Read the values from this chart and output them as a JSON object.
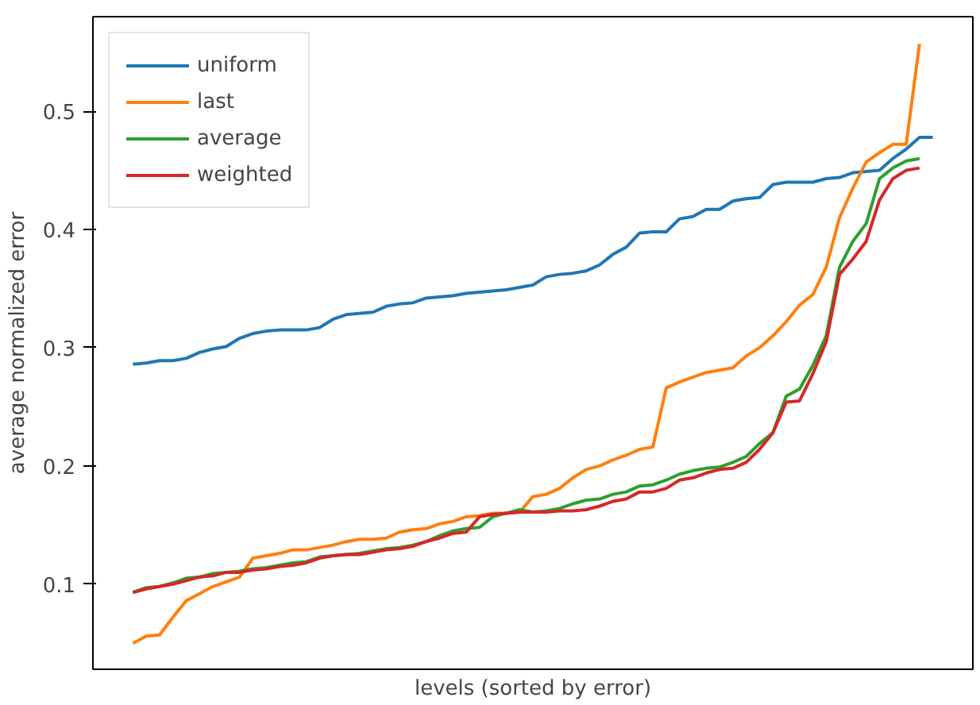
{
  "chart_data": {
    "type": "line",
    "xlabel": "levels (sorted by error)",
    "ylabel": "average normalized error",
    "categories": [
      null,
      null,
      null,
      null,
      null,
      null,
      null,
      null,
      null,
      null,
      null,
      null,
      null,
      null,
      null,
      null,
      null,
      null,
      null,
      null,
      null,
      null,
      null,
      null,
      null,
      null,
      null,
      null,
      null,
      null,
      null,
      null,
      null,
      null,
      null,
      null,
      null,
      null,
      null,
      null,
      null,
      null,
      null,
      null,
      null,
      null,
      null,
      null,
      null,
      null,
      null,
      null,
      null,
      null,
      null,
      null,
      null,
      null,
      null,
      null,
      null
    ],
    "series": [
      {
        "name": "uniform",
        "color": "#1f77b4",
        "values": [
          0.286,
          0.287,
          0.289,
          0.289,
          0.291,
          0.296,
          0.299,
          0.301,
          0.308,
          0.312,
          0.314,
          0.315,
          0.315,
          0.315,
          0.317,
          0.324,
          0.328,
          0.329,
          0.33,
          0.335,
          0.337,
          0.338,
          0.342,
          0.343,
          0.344,
          0.346,
          0.347,
          0.348,
          0.349,
          0.351,
          0.353,
          0.36,
          0.362,
          0.363,
          0.365,
          0.37,
          0.379,
          0.385,
          0.397,
          0.398,
          0.398,
          0.409,
          0.411,
          0.417,
          0.417,
          0.424,
          0.426,
          0.427,
          0.438,
          0.44,
          0.44,
          0.44,
          0.443,
          0.444,
          0.448,
          0.449,
          0.45,
          0.46,
          0.468,
          0.478,
          0.478
        ]
      },
      {
        "name": "last",
        "color": "#ff7f0e",
        "values": [
          0.05,
          0.056,
          0.057,
          0.072,
          0.086,
          0.092,
          0.098,
          0.102,
          0.106,
          0.122,
          0.124,
          0.126,
          0.129,
          0.129,
          0.131,
          0.133,
          0.136,
          0.138,
          0.138,
          0.139,
          0.144,
          0.146,
          0.147,
          0.151,
          0.153,
          0.157,
          0.158,
          0.16,
          0.16,
          0.161,
          0.174,
          0.176,
          0.181,
          0.19,
          0.197,
          0.2,
          0.205,
          0.209,
          0.214,
          0.216,
          0.266,
          0.271,
          0.275,
          0.279,
          0.281,
          0.283,
          0.293,
          0.3,
          0.31,
          0.322,
          0.336,
          0.345,
          0.368,
          0.41,
          0.435,
          0.457,
          0.465,
          0.472,
          0.472,
          0.557,
          null
        ]
      },
      {
        "name": "average",
        "color": "#2ca02c",
        "values": [
          0.093,
          0.097,
          0.098,
          0.101,
          0.105,
          0.106,
          0.109,
          0.11,
          0.111,
          0.113,
          0.114,
          0.116,
          0.118,
          0.119,
          0.123,
          0.124,
          0.125,
          0.126,
          0.128,
          0.13,
          0.131,
          0.133,
          0.136,
          0.141,
          0.145,
          0.147,
          0.148,
          0.157,
          0.16,
          0.163,
          0.161,
          0.162,
          0.164,
          0.168,
          0.171,
          0.172,
          0.176,
          0.178,
          0.183,
          0.184,
          0.188,
          0.193,
          0.196,
          0.198,
          0.199,
          0.203,
          0.208,
          0.219,
          0.228,
          0.259,
          0.265,
          0.285,
          0.31,
          0.368,
          0.39,
          0.405,
          0.443,
          0.452,
          0.458,
          0.46,
          null
        ]
      },
      {
        "name": "weighted",
        "color": "#d62728",
        "values": [
          0.093,
          0.096,
          0.098,
          0.1,
          0.103,
          0.106,
          0.107,
          0.11,
          0.11,
          0.112,
          0.113,
          0.115,
          0.116,
          0.118,
          0.122,
          0.124,
          0.125,
          0.125,
          0.127,
          0.129,
          0.13,
          0.132,
          0.136,
          0.139,
          0.143,
          0.144,
          0.157,
          0.159,
          0.16,
          0.161,
          0.161,
          0.161,
          0.162,
          0.162,
          0.163,
          0.166,
          0.17,
          0.172,
          0.178,
          0.178,
          0.181,
          0.188,
          0.19,
          0.194,
          0.197,
          0.198,
          0.203,
          0.214,
          0.228,
          0.254,
          0.255,
          0.278,
          0.305,
          0.362,
          0.375,
          0.39,
          0.425,
          0.443,
          0.45,
          0.452,
          null
        ]
      }
    ],
    "ylim": [
      0.028,
      0.58
    ],
    "yticks": [
      0.1,
      0.2,
      0.3,
      0.4,
      0.5
    ],
    "grid": false,
    "legend": "top left",
    "marker": "none",
    "line_style": "solid"
  }
}
